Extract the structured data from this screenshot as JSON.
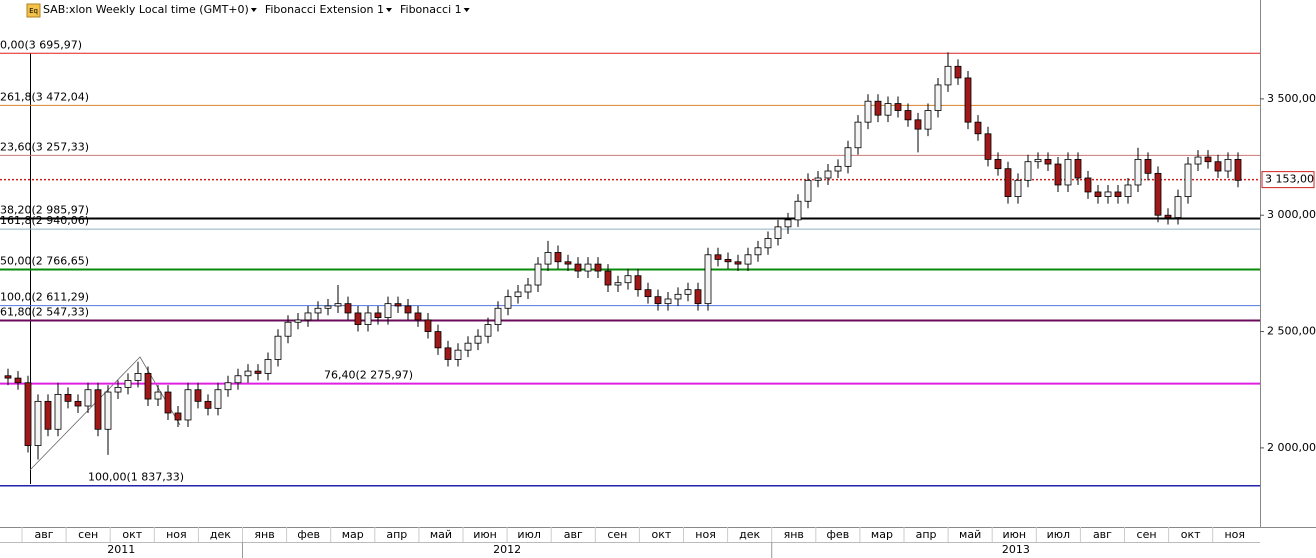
{
  "chart_data": {
    "type": "candlestick",
    "icon_label": "Eq",
    "header": [
      "SAB:xlon Weekly Local time (GMT+0)",
      "Fibonacci Extension 1",
      "Fibonacci 1"
    ],
    "open": [
      2310,
      2300,
      2280,
      2010,
      2200,
      2080,
      2230,
      2200,
      2180,
      2250,
      2080,
      2240,
      2260,
      2290,
      2320,
      2210,
      2240,
      2150,
      2120,
      2250,
      2200,
      2170,
      2250,
      2280,
      2310,
      2330,
      2320,
      2380,
      2480,
      2540,
      2550,
      2580,
      2600,
      2610,
      2620,
      2580,
      2530,
      2580,
      2560,
      2620,
      2610,
      2580,
      2550,
      2500,
      2430,
      2380,
      2420,
      2450,
      2480,
      2530,
      2600,
      2650,
      2670,
      2700,
      2790,
      2840,
      2800,
      2790,
      2760,
      2790,
      2760,
      2700,
      2710,
      2740,
      2680,
      2650,
      2620,
      2640,
      2660,
      2680,
      2620,
      2830,
      2810,
      2800,
      2790,
      2830,
      2860,
      2900,
      2950,
      2980,
      3060,
      3150,
      3160,
      3190,
      3210,
      3290,
      3400,
      3490,
      3430,
      3480,
      3450,
      3410,
      3370,
      3450,
      3560,
      3640,
      3590,
      3400,
      3350,
      3240,
      3200,
      3080,
      3150,
      3230,
      3240,
      3220,
      3130,
      3240,
      3160,
      3100,
      3080,
      3100,
      3080,
      3130,
      3240,
      3180,
      3000,
      2990,
      3080,
      3220,
      3250,
      3230,
      3190,
      3240
    ],
    "high": [
      2340,
      2330,
      2310,
      2230,
      2230,
      2280,
      2260,
      2230,
      2280,
      2280,
      2270,
      2290,
      2320,
      2370,
      2350,
      2270,
      2270,
      2180,
      2280,
      2280,
      2230,
      2280,
      2310,
      2340,
      2360,
      2360,
      2410,
      2510,
      2570,
      2580,
      2610,
      2630,
      2640,
      2700,
      2650,
      2610,
      2610,
      2610,
      2650,
      2650,
      2640,
      2610,
      2580,
      2530,
      2460,
      2450,
      2480,
      2510,
      2560,
      2630,
      2680,
      2700,
      2730,
      2820,
      2890,
      2870,
      2830,
      2820,
      2820,
      2820,
      2790,
      2740,
      2770,
      2770,
      2710,
      2680,
      2670,
      2690,
      2710,
      2710,
      2860,
      2860,
      2840,
      2830,
      2860,
      2890,
      2930,
      2980,
      3010,
      3090,
      3180,
      3190,
      3220,
      3240,
      3320,
      3430,
      3520,
      3520,
      3510,
      3510,
      3480,
      3440,
      3480,
      3590,
      3700,
      3670,
      3620,
      3430,
      3380,
      3270,
      3230,
      3180,
      3260,
      3270,
      3270,
      3250,
      3270,
      3270,
      3190,
      3130,
      3130,
      3130,
      3160,
      3290,
      3270,
      3210,
      3030,
      3110,
      3250,
      3280,
      3280,
      3260,
      3270,
      3270
    ],
    "low": [
      2270,
      2250,
      1980,
      1950,
      2050,
      2050,
      2170,
      2150,
      2150,
      2050,
      1970,
      2210,
      2230,
      2260,
      2180,
      2180,
      2120,
      2090,
      2090,
      2170,
      2140,
      2140,
      2220,
      2250,
      2280,
      2290,
      2290,
      2350,
      2450,
      2510,
      2520,
      2550,
      2570,
      2580,
      2550,
      2500,
      2500,
      2530,
      2530,
      2580,
      2550,
      2520,
      2470,
      2400,
      2350,
      2350,
      2390,
      2420,
      2450,
      2500,
      2570,
      2620,
      2640,
      2670,
      2760,
      2770,
      2760,
      2730,
      2730,
      2730,
      2670,
      2670,
      2680,
      2650,
      2620,
      2590,
      2590,
      2610,
      2630,
      2590,
      2590,
      2780,
      2770,
      2760,
      2760,
      2800,
      2830,
      2870,
      2920,
      2950,
      3030,
      3120,
      3130,
      3160,
      3180,
      3260,
      3370,
      3400,
      3400,
      3420,
      3380,
      3270,
      3340,
      3420,
      3530,
      3560,
      3370,
      3320,
      3210,
      3170,
      3050,
      3050,
      3120,
      3200,
      3190,
      3100,
      3100,
      3130,
      3070,
      3050,
      3050,
      3050,
      3050,
      3100,
      3150,
      2970,
      2960,
      2960,
      3050,
      3190,
      3200,
      3160,
      3160,
      3120
    ],
    "close": [
      2300,
      2280,
      2010,
      2200,
      2080,
      2230,
      2200,
      2180,
      2250,
      2080,
      2240,
      2260,
      2290,
      2320,
      2210,
      2240,
      2150,
      2120,
      2250,
      2200,
      2170,
      2250,
      2280,
      2310,
      2330,
      2320,
      2380,
      2480,
      2540,
      2550,
      2580,
      2600,
      2610,
      2620,
      2580,
      2530,
      2580,
      2560,
      2620,
      2610,
      2580,
      2550,
      2500,
      2430,
      2380,
      2420,
      2450,
      2480,
      2530,
      2600,
      2650,
      2670,
      2700,
      2790,
      2840,
      2800,
      2790,
      2760,
      2790,
      2760,
      2700,
      2710,
      2740,
      2680,
      2650,
      2620,
      2640,
      2660,
      2680,
      2620,
      2830,
      2810,
      2800,
      2790,
      2830,
      2860,
      2900,
      2950,
      2980,
      3060,
      3150,
      3160,
      3190,
      3210,
      3290,
      3400,
      3490,
      3430,
      3480,
      3450,
      3410,
      3370,
      3450,
      3560,
      3640,
      3590,
      3400,
      3350,
      3240,
      3200,
      3080,
      3150,
      3230,
      3240,
      3220,
      3130,
      3240,
      3160,
      3100,
      3080,
      3100,
      3080,
      3130,
      3240,
      3180,
      3000,
      2990,
      3080,
      3220,
      3250,
      3230,
      3190,
      3240,
      3150
    ],
    "up_color": "#f4f4f4",
    "down_color": "#a01818",
    "ylim": [
      1660,
      3925
    ],
    "yticks": [
      {
        "value": 2000,
        "label": "2 000,00"
      },
      {
        "value": 2500,
        "label": "2 500,00"
      },
      {
        "value": 3000,
        "label": "3 000,00"
      },
      {
        "value": 3500,
        "label": "3 500,00"
      }
    ],
    "levels": [
      {
        "label": "0,00(3 695,97)",
        "value": 3695.97,
        "color": "#e02020"
      },
      {
        "label": "261,8(3 472,04)",
        "value": 3472.04,
        "color": "#d9822b"
      },
      {
        "label": "23,60(3 257,33)",
        "value": 3257.33,
        "color": "#cc7a7a"
      },
      {
        "label": "38,20(2 985,97)",
        "value": 2985.97,
        "color": "#000000"
      },
      {
        "label": "161,8(2 940,06)",
        "value": 2940.06,
        "color": "#8fb0c0"
      },
      {
        "label": "50,00(2 766,65)",
        "value": 2766.65,
        "color": "#0a8a0a"
      },
      {
        "label": "100,0(2 611,29)",
        "value": 2611.29,
        "color": "#5577dd"
      },
      {
        "label": "61,80(2 547,33)",
        "value": 2547.33,
        "color": "#6a0a5a"
      },
      {
        "label": "76,40(2 275,97)",
        "value": 2275.97,
        "color": "#e020e0"
      },
      {
        "label": "100,00(1 837,33)",
        "value": 1837.33,
        "color": "#2222aa"
      }
    ],
    "last_price": {
      "value": 3153,
      "label": "3 153,00",
      "color": "#d02020"
    },
    "months": [
      "авг",
      "сен",
      "окт",
      "ноя",
      "дек",
      "янв",
      "фев",
      "мар",
      "апр",
      "май",
      "июн",
      "июл",
      "авг",
      "сен",
      "окт",
      "ноя",
      "дек",
      "янв",
      "фев",
      "мар",
      "апр",
      "май",
      "июн",
      "июл",
      "авг",
      "сен",
      "окт",
      "ноя"
    ],
    "years": [
      "2011",
      "2012",
      "2013"
    ]
  }
}
